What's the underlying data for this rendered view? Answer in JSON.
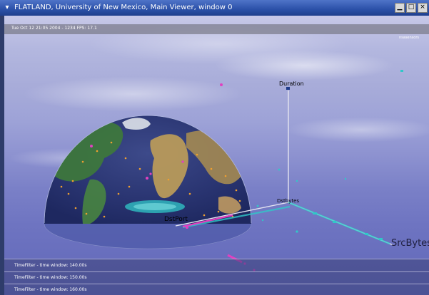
{
  "window": {
    "title": "FLATLAND, University of New Mexico, Main Viewer, window 0",
    "menu_icon": "chevron-down-icon",
    "buttons": [
      {
        "name": "minimize-icon",
        "glyph": "▁"
      },
      {
        "name": "maximize-icon",
        "glyph": "□"
      },
      {
        "name": "close-icon",
        "glyph": "×"
      }
    ]
  },
  "hud": {
    "status": "Tue Oct 12 21:05 2004 - 1234  FPS: 17.1",
    "corner_label": "nsasensors"
  },
  "axes": {
    "duration": "Duration",
    "dstport": "DstPort",
    "srcbytes": "SrcBytes",
    "center": "Dstbytes"
  },
  "panel": {
    "lines": [
      "TimeFilter - time window: 140.00s",
      "TimeFilter - time window: 150.00s",
      "TimeFilter - time window: 160.00s"
    ]
  },
  "colors": {
    "title_bar": "#2b50a8",
    "axis_line": "#d8d8e8",
    "point_magenta": "#e040c0",
    "point_cyan": "#30c8c8",
    "point_orange": "#f0a030"
  }
}
